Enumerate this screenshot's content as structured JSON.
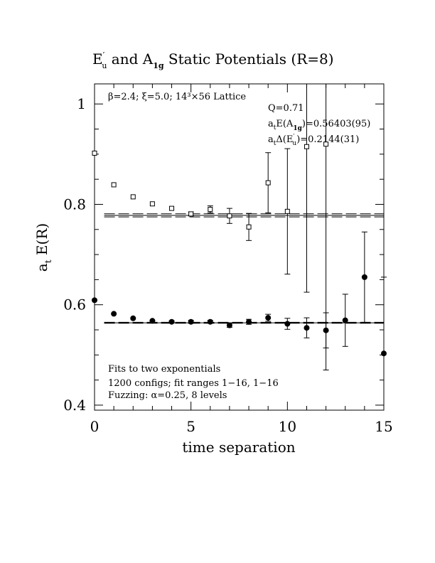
{
  "chart_data": {
    "type": "scatter",
    "title_parts": {
      "sym1_base": "E",
      "sym1_prime": "′",
      "sym1_sub": "u",
      "mid": " and ",
      "sym2_base": "A",
      "sym2_sub": "1g",
      "end": " Static Potentials (R=8)"
    },
    "xlabel": "time separation",
    "ylabel_base": "a",
    "ylabel_sub": "t",
    "ylabel_rest": " E(R)",
    "xlim": [
      0,
      15
    ],
    "ylim": [
      0.39,
      1.04
    ],
    "x_ticks": [
      0,
      5,
      10,
      15
    ],
    "x_tick_labels": [
      "0",
      "5",
      "10",
      "15"
    ],
    "y_ticks": [
      0.4,
      0.6,
      0.8,
      1.0
    ],
    "y_tick_labels": [
      "0.4",
      "0.6",
      "0.8",
      "1"
    ],
    "annotations": {
      "lattice": "β=2.4; ξ=5.0; 14³×56 Lattice",
      "q": "Q=0.71",
      "ea_pre": "a",
      "ea_sub_t": "t",
      "ea_mid": "E(A",
      "ea_sub": "1g",
      "ea_val": ")=0.56403(95)",
      "de_pre": "a",
      "de_sub_t": "t",
      "de_mid": "Δ(E",
      "de_prime": "′",
      "de_sub": "u",
      "de_val": ")=0.2144(31)",
      "fits1": "Fits to two exponentials",
      "fits2": "1200 configs; fit ranges 1−16, 1−16",
      "fits3": "Fuzzing: α=0.25, 8 levels"
    },
    "series": [
      {
        "marker": "open-square",
        "points": [
          {
            "x": 0,
            "y": 0.902,
            "err": 0
          },
          {
            "x": 1,
            "y": 0.839,
            "err": 0
          },
          {
            "x": 2,
            "y": 0.815,
            "err": 0
          },
          {
            "x": 3,
            "y": 0.801,
            "err": 0
          },
          {
            "x": 4,
            "y": 0.792,
            "err": 0
          },
          {
            "x": 5,
            "y": 0.781,
            "err": 0.004
          },
          {
            "x": 6,
            "y": 0.79,
            "err": 0.007
          },
          {
            "x": 7,
            "y": 0.777,
            "err": 0.015
          },
          {
            "x": 8,
            "y": 0.755,
            "err": 0.027
          },
          {
            "x": 9,
            "y": 0.843,
            "err": 0.06
          },
          {
            "x": 10,
            "y": 0.786,
            "err": 0.125
          },
          {
            "x": 11,
            "y": 0.915,
            "err": 0.29
          },
          {
            "x": 12,
            "y": 0.92,
            "err": 0.45
          }
        ],
        "fit": {
          "value": 0.77803,
          "err": 0.0031,
          "x_start": 0.5,
          "x_end": 15
        }
      },
      {
        "marker": "filled-circle",
        "points": [
          {
            "x": 0,
            "y": 0.609,
            "err": 0
          },
          {
            "x": 1,
            "y": 0.582,
            "err": 0
          },
          {
            "x": 2,
            "y": 0.573,
            "err": 0
          },
          {
            "x": 3,
            "y": 0.568,
            "err": 0
          },
          {
            "x": 4,
            "y": 0.566,
            "err": 0.002
          },
          {
            "x": 5,
            "y": 0.566,
            "err": 0.003
          },
          {
            "x": 6,
            "y": 0.566,
            "err": 0.003
          },
          {
            "x": 7,
            "y": 0.559,
            "err": 0.004
          },
          {
            "x": 8,
            "y": 0.566,
            "err": 0.005
          },
          {
            "x": 9,
            "y": 0.574,
            "err": 0.007
          },
          {
            "x": 10,
            "y": 0.562,
            "err": 0.011
          },
          {
            "x": 11,
            "y": 0.554,
            "err": 0.02
          },
          {
            "x": 12,
            "y": 0.549,
            "err": 0.035
          },
          {
            "x": 13,
            "y": 0.569,
            "err": 0.052
          },
          {
            "x": 14,
            "y": 0.655,
            "err": 0.09
          },
          {
            "x": 15,
            "y": 0.503,
            "err": 0.152
          }
        ],
        "fit": {
          "value": 0.56403,
          "err": 0.00095,
          "x_start": 0.5,
          "x_end": 15
        }
      }
    ]
  }
}
